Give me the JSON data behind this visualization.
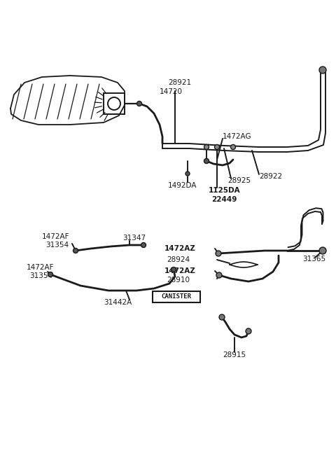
{
  "bg_color": "#ffffff",
  "lc": "#1a1a1a",
  "fig_w": 4.8,
  "fig_h": 6.57,
  "dpi": 100,
  "xlim": [
    0,
    480
  ],
  "ylim": [
    0,
    657
  ]
}
